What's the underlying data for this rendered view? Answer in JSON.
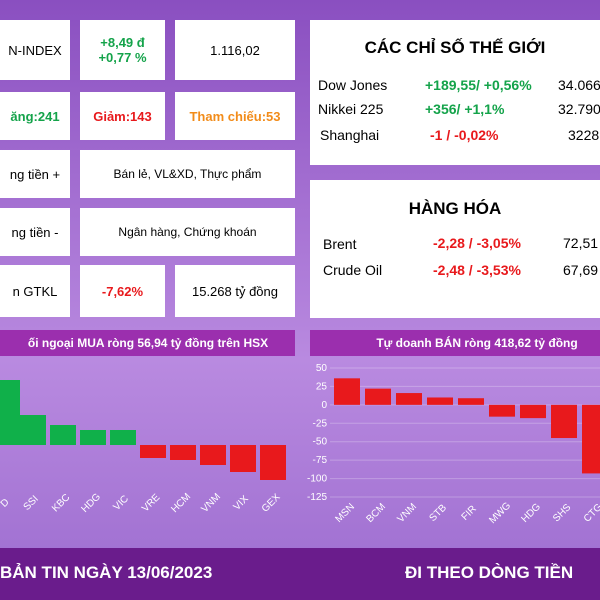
{
  "left_panel": {
    "rows": [
      [
        "N-INDEX",
        "+8,49 đ",
        "+0,77 %",
        "1.116,02"
      ],
      [
        "ăng:241",
        "Giảm:143",
        "Tham chiếu:53"
      ],
      [
        "ng tiền +",
        "Bán lẻ, VL&XD, Thực phẩm"
      ],
      [
        "ng tiền -",
        "Ngân hàng, Chứng khoán"
      ],
      [
        "n GTKL",
        "-7,62%",
        "15.268 tỷ đồng"
      ]
    ]
  },
  "world": {
    "title": "CÁC CHỈ SỐ THẾ GIỚI",
    "rows": [
      [
        "Dow Jones",
        "+189,55/ +0,56%",
        "34.066"
      ],
      [
        "Nikkei 225",
        "+356/ +1,1%",
        "32.790"
      ],
      [
        "Shanghai",
        "-1 / -0,02%",
        "3228"
      ]
    ]
  },
  "commodities": {
    "title": "HÀNG HÓA",
    "rows": [
      [
        "Brent",
        "-2,28 / -3,05%",
        "72,51"
      ],
      [
        "Crude Oil",
        "-2,48 / -3,53%",
        "67,69"
      ]
    ]
  },
  "chart_data": [
    {
      "type": "bar",
      "title": "ối ngoại MUA ròng 56,94 tỷ đồng trên HSX",
      "categories": [
        "D",
        "SSI",
        "KBC",
        "HDG",
        "VIC",
        "VRE",
        "HCM",
        "VNM",
        "VIX",
        "GEX"
      ],
      "values": [
        65,
        30,
        20,
        15,
        15,
        -13,
        -15,
        -20,
        -27,
        -35
      ],
      "positive_color": "#10b04a",
      "negative_color": "#e8191c"
    },
    {
      "type": "bar",
      "title": "Tự doanh BÁN ròng 418,62 tỷ đồng",
      "categories": [
        "MSN",
        "BCM",
        "VNM",
        "STB",
        "FIR",
        "MWG",
        "HDG",
        "SHS",
        "CTG"
      ],
      "values": [
        36,
        22,
        16,
        10,
        9,
        -16,
        -18,
        -45,
        -93
      ],
      "color": "#e8191c",
      "ylim": [
        50,
        -125
      ],
      "yticks": [
        50,
        25,
        0,
        -25,
        -50,
        -75,
        -100,
        -125
      ]
    }
  ],
  "footer": {
    "left": "BẢN TIN NGÀY 13/06/2023",
    "right": "ĐI THEO DÒNG TIỀN"
  }
}
